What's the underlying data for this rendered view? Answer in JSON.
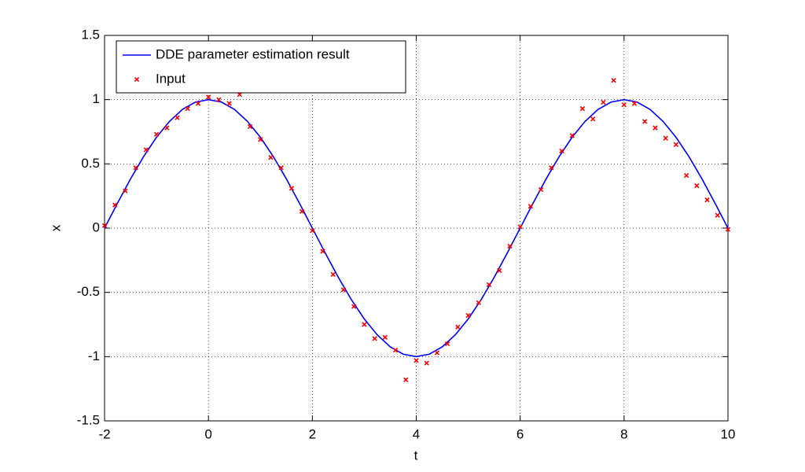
{
  "chart_data": {
    "type": "line",
    "xlabel": "t",
    "ylabel": "x",
    "xlim": [
      -2,
      10
    ],
    "ylim": [
      -1.5,
      1.5
    ],
    "xticks": [
      -2,
      0,
      2,
      4,
      6,
      8,
      10
    ],
    "yticks": [
      -1.5,
      -1,
      -0.5,
      0,
      0.5,
      1,
      1.5
    ],
    "grid": true,
    "legend": "northwest",
    "series": [
      {
        "name": "DDE parameter estimation result",
        "color": "#0000ff",
        "mode": "line",
        "x": [
          -2,
          -1.75,
          -1.5,
          -1.25,
          -1,
          -0.75,
          -0.5,
          -0.25,
          0,
          0.25,
          0.5,
          0.75,
          1,
          1.25,
          1.5,
          1.75,
          2,
          2.25,
          2.5,
          2.75,
          3,
          3.25,
          3.5,
          3.75,
          4,
          4.25,
          4.5,
          4.75,
          5,
          5.25,
          5.5,
          5.75,
          6,
          6.25,
          6.5,
          6.75,
          7,
          7.25,
          7.5,
          7.75,
          8,
          8.25,
          8.5,
          8.75,
          9,
          9.25,
          9.5,
          9.75,
          10
        ],
        "values": [
          0,
          0.195,
          0.383,
          0.556,
          0.707,
          0.831,
          0.924,
          0.981,
          1,
          0.981,
          0.924,
          0.831,
          0.707,
          0.556,
          0.383,
          0.195,
          0,
          -0.195,
          -0.383,
          -0.556,
          -0.707,
          -0.831,
          -0.924,
          -0.981,
          -1,
          -0.981,
          -0.924,
          -0.831,
          -0.707,
          -0.556,
          -0.383,
          -0.195,
          0,
          0.195,
          0.383,
          0.556,
          0.707,
          0.831,
          0.924,
          0.981,
          1,
          0.981,
          0.924,
          0.831,
          0.707,
          0.556,
          0.383,
          0.195,
          0
        ]
      },
      {
        "name": "Input",
        "color": "#ff0000",
        "mode": "markers",
        "x": [
          -2,
          -1.8,
          -1.6,
          -1.4,
          -1.2,
          -1,
          -0.8,
          -0.6,
          -0.4,
          -0.2,
          0,
          0.2,
          0.4,
          0.6,
          0.8,
          1,
          1.2,
          1.4,
          1.6,
          1.8,
          2,
          2.2,
          2.4,
          2.6,
          2.8,
          3,
          3.2,
          3.4,
          3.6,
          3.8,
          4,
          4.2,
          4.4,
          4.6,
          4.8,
          5,
          5.2,
          5.4,
          5.6,
          5.8,
          6,
          6.2,
          6.4,
          6.6,
          6.8,
          7,
          7.2,
          7.4,
          7.6,
          7.8,
          8,
          8.2,
          8.4,
          8.6,
          8.8,
          9,
          9.2,
          9.4,
          9.6,
          9.8,
          10
        ],
        "values": [
          0.02,
          0.18,
          0.29,
          0.47,
          0.61,
          0.73,
          0.78,
          0.86,
          0.93,
          0.97,
          1.02,
          1,
          0.97,
          1.04,
          0.79,
          0.69,
          0.55,
          0.47,
          0.31,
          0.13,
          -0.02,
          -0.18,
          -0.36,
          -0.48,
          -0.61,
          -0.75,
          -0.86,
          -0.85,
          -0.95,
          -1.18,
          -1.03,
          -1.05,
          -0.97,
          -0.9,
          -0.77,
          -0.68,
          -0.58,
          -0.44,
          -0.33,
          -0.14,
          0.01,
          0.17,
          0.3,
          0.47,
          0.6,
          0.72,
          0.93,
          0.85,
          0.98,
          1.15,
          0.96,
          0.97,
          0.83,
          0.78,
          0.7,
          0.65,
          0.41,
          0.33,
          0.22,
          0.1,
          -0.01
        ]
      }
    ]
  }
}
